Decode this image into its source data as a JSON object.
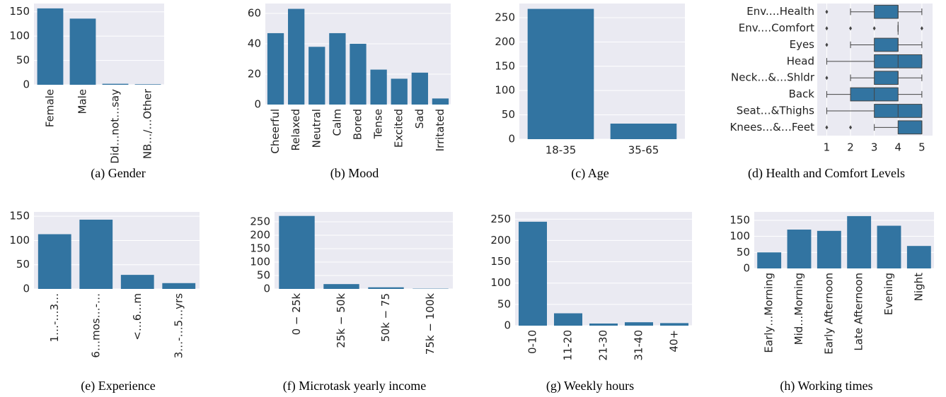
{
  "chart_data": [
    {
      "type": "bar",
      "title": "(a) Gender",
      "categories": [
        "Female",
        "Male",
        "Did…not…say",
        "NB…/…Other"
      ],
      "values": [
        157,
        136,
        2,
        1
      ],
      "color": "#3274a1",
      "ylim": [
        0,
        167
      ],
      "yticks": [
        0,
        50,
        100,
        150
      ],
      "grid": true
    },
    {
      "type": "bar",
      "title": "(b) Mood",
      "categories": [
        "Cheerful",
        "Relaxed",
        "Neutral",
        "Calm",
        "Bored",
        "Tense",
        "Excited",
        "Sad",
        "Irritated"
      ],
      "values": [
        47,
        63,
        38,
        47,
        40,
        23,
        17,
        21,
        4
      ],
      "color": "#3274a1",
      "ylim": [
        0,
        66.5
      ],
      "yticks": [
        0,
        20,
        40,
        60
      ],
      "grid": true
    },
    {
      "type": "bar",
      "title": "(c) Age",
      "categories": [
        "18-35",
        "35-65"
      ],
      "values": [
        268,
        32
      ],
      "color": "#3274a1",
      "ylim": [
        0,
        279
      ],
      "yticks": [
        0,
        50,
        100,
        150,
        200,
        250
      ],
      "grid": true
    },
    {
      "type": "box",
      "title": "(d) Health and Comfort Levels",
      "categories": [
        "Env.…Health",
        "Env.…Comfort",
        "Eyes",
        "Head",
        "Neck…&…Shldr",
        "Back",
        "Seat…&Thighs",
        "Knees…&…Feet"
      ],
      "boxes": [
        {
          "low": 2,
          "q1": 3,
          "median": 4,
          "q3": 4,
          "high": 5,
          "outliers": [
            1
          ]
        },
        {
          "low": 4,
          "q1": 4,
          "median": 4,
          "q3": 4,
          "high": 4,
          "outliers": [
            1,
            2,
            3,
            5
          ]
        },
        {
          "low": 2,
          "q1": 3,
          "median": 4,
          "q3": 4,
          "high": 5,
          "outliers": [
            1
          ]
        },
        {
          "low": 1,
          "q1": 3,
          "median": 4,
          "q3": 5,
          "high": 5,
          "outliers": []
        },
        {
          "low": 2,
          "q1": 3,
          "median": 4,
          "q3": 4,
          "high": 5,
          "outliers": [
            1
          ]
        },
        {
          "low": 1,
          "q1": 2,
          "median": 3,
          "q3": 4,
          "high": 5,
          "outliers": []
        },
        {
          "low": 1,
          "q1": 3,
          "median": 4,
          "q3": 5,
          "high": 5,
          "outliers": []
        },
        {
          "low": 3,
          "q1": 4,
          "median": 5,
          "q3": 5,
          "high": 5,
          "outliers": [
            1,
            2
          ]
        }
      ],
      "color": "#3274a1",
      "xlim": [
        0.6,
        5.45
      ],
      "xticks": [
        1,
        2,
        3,
        4,
        5
      ],
      "grid": true
    },
    {
      "type": "bar",
      "title": "(e) Experience",
      "categories": [
        "1…-…3…",
        "6…mos…-…",
        "<…6…m",
        "3…-…5…yrs"
      ],
      "values": [
        113,
        143,
        29,
        12
      ],
      "color": "#3274a1",
      "ylim": [
        0,
        159
      ],
      "yticks": [
        0,
        50,
        100,
        150
      ],
      "grid": true
    },
    {
      "type": "bar",
      "title": "(f) Microtask yearly income",
      "categories": [
        "0 − 25k",
        "25k − 50k",
        "50k − 75",
        "75k − 100k"
      ],
      "values": [
        272,
        18,
        6,
        1
      ],
      "color": "#3274a1",
      "ylim": [
        0,
        287
      ],
      "yticks": [
        0,
        50,
        100,
        150,
        200,
        250
      ],
      "grid": true
    },
    {
      "type": "bar",
      "title": "(g) Weekly hours",
      "categories": [
        "0-10",
        "11-20",
        "21-30",
        "31-40",
        "40+"
      ],
      "values": [
        244,
        29,
        5,
        8,
        6
      ],
      "color": "#3274a1",
      "ylim": [
        0,
        267
      ],
      "yticks": [
        0,
        50,
        100,
        150,
        200,
        250
      ],
      "grid": true
    },
    {
      "type": "bar",
      "title": "(h) Working times",
      "categories": [
        "Early…Morning",
        "Mid…Morning",
        "Early Afternoon",
        "Late Afternoon",
        "Evening",
        "Night"
      ],
      "values": [
        50,
        121,
        117,
        163,
        133,
        70
      ],
      "color": "#3274a1",
      "ylim": [
        0,
        176
      ],
      "yticks": [
        0,
        50,
        100,
        150
      ],
      "grid": true
    }
  ]
}
